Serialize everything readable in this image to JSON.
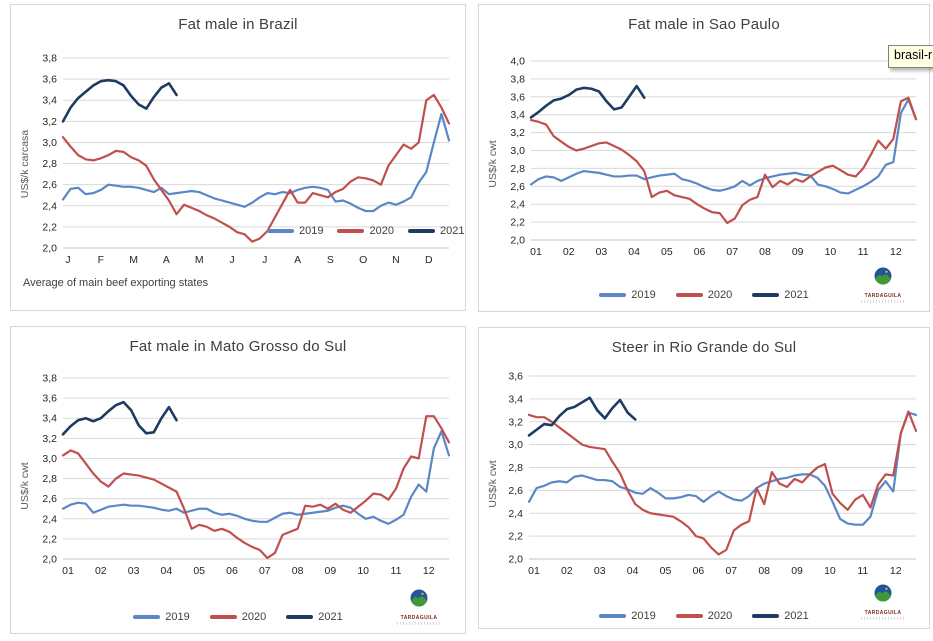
{
  "tooltip": {
    "text": "brasil-r"
  },
  "logo": {
    "text": "TARDAGUILA"
  },
  "colors": {
    "accent_2019": "#5b87c5",
    "accent_2020": "#c0504d",
    "accent_2021": "#1f3a63",
    "grid": "#d9d9d9",
    "axis_line": "#c3c3c3",
    "tick_text": "#262626"
  },
  "chart_data": [
    {
      "type": "line",
      "title": "Fat male in Brazil",
      "ylabel": "US$/k carcasa",
      "ylim": [
        2.0,
        3.8
      ],
      "ytick_step": 0.2,
      "ytick_labels": [
        "2,0",
        "2,2",
        "2,4",
        "2,6",
        "2,8",
        "3,0",
        "3,2",
        "3,4",
        "3,6",
        "3,8"
      ],
      "x_labels": [
        "J",
        "F",
        "M",
        "A",
        "M",
        "J",
        "J",
        "A",
        "S",
        "O",
        "N",
        "D"
      ],
      "legend_position": "inside-right",
      "footnote": "Average of main beef exporting states",
      "grid": true,
      "series": [
        {
          "name": "2019",
          "color": "#5b87c5",
          "values": [
            2.46,
            2.56,
            2.57,
            2.51,
            2.52,
            2.55,
            2.6,
            2.59,
            2.58,
            2.58,
            2.57,
            2.55,
            2.53,
            2.57,
            2.51,
            2.52,
            2.53,
            2.54,
            2.53,
            2.5,
            2.47,
            2.45,
            2.43,
            2.41,
            2.39,
            2.43,
            2.48,
            2.52,
            2.51,
            2.53,
            2.52,
            2.55,
            2.57,
            2.58,
            2.57,
            2.55,
            2.44,
            2.45,
            2.42,
            2.38,
            2.35,
            2.35,
            2.4,
            2.43,
            2.41,
            2.44,
            2.48,
            2.62,
            2.72,
            3.0,
            3.27,
            3.02
          ]
        },
        {
          "name": "2020",
          "color": "#c0504d",
          "values": [
            3.05,
            2.96,
            2.88,
            2.84,
            2.83,
            2.85,
            2.88,
            2.92,
            2.91,
            2.86,
            2.83,
            2.78,
            2.65,
            2.55,
            2.45,
            2.32,
            2.41,
            2.38,
            2.35,
            2.31,
            2.28,
            2.24,
            2.2,
            2.15,
            2.13,
            2.06,
            2.09,
            2.16,
            2.29,
            2.42,
            2.55,
            2.43,
            2.43,
            2.52,
            2.5,
            2.48,
            2.53,
            2.56,
            2.63,
            2.67,
            2.66,
            2.64,
            2.6,
            2.78,
            2.88,
            2.98,
            2.94,
            3.0,
            3.4,
            3.45,
            3.33,
            3.18
          ]
        },
        {
          "name": "2021",
          "color": "#1f3a63",
          "values": [
            3.2,
            3.33,
            3.42,
            3.48,
            3.54,
            3.58,
            3.59,
            3.58,
            3.54,
            3.44,
            3.36,
            3.32,
            3.43,
            3.52,
            3.56,
            3.45
          ]
        }
      ]
    },
    {
      "type": "line",
      "title": "Fat male in Sao Paulo",
      "ylabel": "US$/k cwt",
      "ylim": [
        2.0,
        4.0
      ],
      "ytick_step": 0.2,
      "ytick_labels": [
        "2,0",
        "2,2",
        "2,4",
        "2,6",
        "2,8",
        "3,0",
        "3,2",
        "3,4",
        "3,6",
        "3,8",
        "4,0"
      ],
      "x_labels": [
        "01",
        "02",
        "03",
        "04",
        "05",
        "06",
        "07",
        "08",
        "09",
        "10",
        "11",
        "12"
      ],
      "legend_position": "below",
      "grid": true,
      "series": [
        {
          "name": "2019",
          "color": "#5b87c5",
          "values": [
            2.62,
            2.68,
            2.71,
            2.7,
            2.66,
            2.7,
            2.74,
            2.77,
            2.76,
            2.75,
            2.73,
            2.71,
            2.71,
            2.72,
            2.72,
            2.68,
            2.7,
            2.72,
            2.73,
            2.74,
            2.68,
            2.66,
            2.63,
            2.59,
            2.56,
            2.55,
            2.57,
            2.6,
            2.66,
            2.61,
            2.66,
            2.69,
            2.71,
            2.73,
            2.74,
            2.75,
            2.73,
            2.72,
            2.62,
            2.6,
            2.57,
            2.53,
            2.52,
            2.56,
            2.6,
            2.65,
            2.71,
            2.84,
            2.87,
            3.42,
            3.57,
            3.35
          ]
        },
        {
          "name": "2020",
          "color": "#c0504d",
          "values": [
            3.34,
            3.32,
            3.29,
            3.16,
            3.1,
            3.04,
            3.0,
            3.02,
            3.05,
            3.08,
            3.09,
            3.05,
            3.01,
            2.95,
            2.88,
            2.77,
            2.48,
            2.53,
            2.55,
            2.5,
            2.48,
            2.46,
            2.4,
            2.35,
            2.31,
            2.3,
            2.19,
            2.24,
            2.39,
            2.45,
            2.48,
            2.73,
            2.59,
            2.66,
            2.62,
            2.68,
            2.65,
            2.71,
            2.76,
            2.81,
            2.83,
            2.78,
            2.73,
            2.71,
            2.8,
            2.95,
            3.11,
            3.02,
            3.13,
            3.55,
            3.59,
            3.35
          ]
        },
        {
          "name": "2021",
          "color": "#1f3a63",
          "values": [
            3.37,
            3.43,
            3.5,
            3.56,
            3.58,
            3.62,
            3.68,
            3.7,
            3.69,
            3.66,
            3.55,
            3.46,
            3.48,
            3.6,
            3.72,
            3.59
          ]
        }
      ]
    },
    {
      "type": "line",
      "title": "Fat male in Mato Grosso do Sul",
      "ylabel": "US$/k cwt",
      "ylim": [
        2.0,
        3.8
      ],
      "ytick_step": 0.2,
      "ytick_labels": [
        "2,0",
        "2,2",
        "2,4",
        "2,6",
        "2,8",
        "3,0",
        "3,2",
        "3,4",
        "3,6",
        "3,8"
      ],
      "x_labels": [
        "01",
        "02",
        "03",
        "04",
        "05",
        "06",
        "07",
        "08",
        "09",
        "10",
        "11",
        "12"
      ],
      "legend_position": "below",
      "grid": true,
      "series": [
        {
          "name": "2019",
          "color": "#5b87c5",
          "values": [
            2.5,
            2.54,
            2.56,
            2.55,
            2.46,
            2.49,
            2.52,
            2.53,
            2.54,
            2.53,
            2.53,
            2.52,
            2.51,
            2.49,
            2.48,
            2.5,
            2.46,
            2.48,
            2.5,
            2.5,
            2.46,
            2.44,
            2.45,
            2.43,
            2.4,
            2.38,
            2.37,
            2.37,
            2.41,
            2.45,
            2.46,
            2.44,
            2.45,
            2.46,
            2.47,
            2.48,
            2.51,
            2.53,
            2.51,
            2.45,
            2.4,
            2.42,
            2.38,
            2.35,
            2.39,
            2.44,
            2.62,
            2.74,
            2.67,
            3.1,
            3.27,
            3.03
          ]
        },
        {
          "name": "2020",
          "color": "#c0504d",
          "values": [
            3.03,
            3.08,
            3.05,
            2.95,
            2.85,
            2.77,
            2.72,
            2.8,
            2.85,
            2.84,
            2.83,
            2.81,
            2.79,
            2.75,
            2.71,
            2.67,
            2.5,
            2.3,
            2.34,
            2.32,
            2.28,
            2.3,
            2.27,
            2.21,
            2.16,
            2.12,
            2.09,
            2.01,
            2.06,
            2.24,
            2.27,
            2.3,
            2.53,
            2.52,
            2.54,
            2.5,
            2.55,
            2.49,
            2.46,
            2.52,
            2.58,
            2.65,
            2.64,
            2.59,
            2.7,
            2.9,
            3.02,
            3.0,
            3.42,
            3.42,
            3.3,
            3.16
          ]
        },
        {
          "name": "2021",
          "color": "#1f3a63",
          "values": [
            3.24,
            3.32,
            3.38,
            3.4,
            3.37,
            3.4,
            3.47,
            3.53,
            3.56,
            3.48,
            3.33,
            3.25,
            3.26,
            3.4,
            3.51,
            3.38
          ]
        }
      ]
    },
    {
      "type": "line",
      "title": "Steer in Rio Grande do Sul",
      "ylabel": "US$/k cwt",
      "ylim": [
        2.0,
        3.6
      ],
      "ytick_step": 0.2,
      "ytick_labels": [
        "2,0",
        "2,2",
        "2,4",
        "2,6",
        "2,8",
        "3,0",
        "3,2",
        "3,4",
        "3,6"
      ],
      "x_labels": [
        "01",
        "02",
        "03",
        "04",
        "05",
        "06",
        "07",
        "08",
        "09",
        "10",
        "11",
        "12"
      ],
      "legend_position": "below",
      "grid": true,
      "series": [
        {
          "name": "2019",
          "color": "#5b87c5",
          "values": [
            2.5,
            2.62,
            2.64,
            2.67,
            2.68,
            2.67,
            2.72,
            2.73,
            2.71,
            2.69,
            2.69,
            2.68,
            2.63,
            2.61,
            2.58,
            2.57,
            2.62,
            2.58,
            2.53,
            2.53,
            2.54,
            2.56,
            2.55,
            2.5,
            2.55,
            2.59,
            2.55,
            2.52,
            2.51,
            2.55,
            2.62,
            2.66,
            2.68,
            2.7,
            2.71,
            2.73,
            2.74,
            2.74,
            2.71,
            2.64,
            2.5,
            2.35,
            2.31,
            2.3,
            2.3,
            2.37,
            2.6,
            2.68,
            2.59,
            3.1,
            3.28,
            3.26
          ]
        },
        {
          "name": "2020",
          "color": "#c0504d",
          "values": [
            3.26,
            3.24,
            3.24,
            3.2,
            3.15,
            3.1,
            3.05,
            3.0,
            2.98,
            2.97,
            2.96,
            2.85,
            2.75,
            2.6,
            2.48,
            2.43,
            2.4,
            2.39,
            2.38,
            2.37,
            2.33,
            2.28,
            2.2,
            2.18,
            2.1,
            2.04,
            2.08,
            2.25,
            2.3,
            2.33,
            2.62,
            2.48,
            2.76,
            2.66,
            2.63,
            2.7,
            2.67,
            2.74,
            2.8,
            2.83,
            2.57,
            2.49,
            2.43,
            2.52,
            2.56,
            2.45,
            2.65,
            2.74,
            2.73,
            3.1,
            3.29,
            3.12
          ]
        },
        {
          "name": "2021",
          "color": "#1f3a63",
          "values": [
            3.08,
            3.13,
            3.18,
            3.17,
            3.25,
            3.31,
            3.33,
            3.37,
            3.41,
            3.3,
            3.23,
            3.32,
            3.39,
            3.28,
            3.22
          ]
        }
      ]
    }
  ]
}
